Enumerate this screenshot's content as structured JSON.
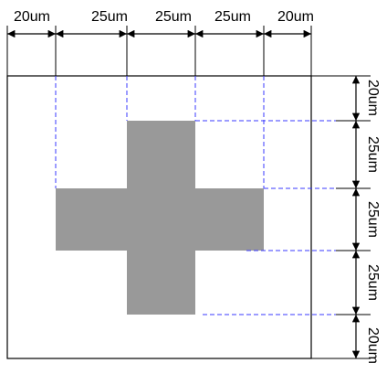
{
  "labels": {
    "top": [
      "20um",
      "25um",
      "25um",
      "25um",
      "20um"
    ],
    "right": [
      "20um",
      "25um",
      "25um",
      "25um",
      "20um"
    ]
  },
  "colors": {
    "shape_fill": "#999999",
    "outline": "#000000",
    "guide": "#3a3aff",
    "background": "#ffffff"
  }
}
